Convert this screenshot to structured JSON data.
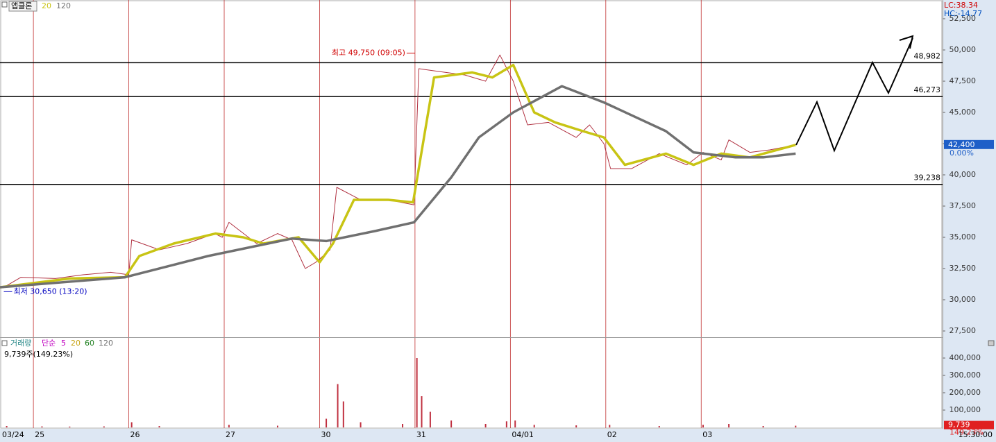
{
  "chart_data": [
    {
      "type": "line",
      "title": "앱클론",
      "lc": "LC:38.34",
      "hc": "HC:-14.77",
      "xlim": [
        -0.35,
        9.53
      ],
      "ylim": [
        27056,
        54000
      ],
      "xticks": [
        {
          "value": -0.35,
          "label": "03/24"
        },
        {
          "value": 0,
          "label": "25"
        },
        {
          "value": 1,
          "label": "26"
        },
        {
          "value": 2,
          "label": "27"
        },
        {
          "value": 3,
          "label": "30"
        },
        {
          "value": 4,
          "label": "31"
        },
        {
          "value": 5,
          "label": "04/01"
        },
        {
          "value": 6,
          "label": "02"
        },
        {
          "value": 7,
          "label": "03"
        }
      ],
      "yticks": [
        {
          "value": 27500,
          "label": "27,500"
        },
        {
          "value": 30000,
          "label": "30,000"
        },
        {
          "value": 32500,
          "label": "32,500"
        },
        {
          "value": 35000,
          "label": "35,000"
        },
        {
          "value": 37500,
          "label": "37,500"
        },
        {
          "value": 40000,
          "label": "40,000"
        },
        {
          "value": 42500,
          "label": "42,500"
        },
        {
          "value": 45000,
          "label": "45,000"
        },
        {
          "value": 47500,
          "label": "47,500"
        },
        {
          "value": 50000,
          "label": "50,000"
        },
        {
          "value": 52500,
          "label": "52,500"
        }
      ],
      "hlines": [
        {
          "value": 48982,
          "label": "48,982"
        },
        {
          "value": 46273,
          "label": "46,273"
        },
        {
          "value": 39238,
          "label": "39,238"
        }
      ],
      "last_price": {
        "value": 42400,
        "label": "42,400"
      },
      "change": "0.00%",
      "annotations": [
        {
          "text": "최고 49,750 (09:05)",
          "x": 4.0,
          "value": 49750,
          "color": "#d00000"
        },
        {
          "text": "최저 30,650 (13:20)",
          "x": -0.31,
          "value": 30650,
          "color": "#0000c0"
        }
      ],
      "series": [
        {
          "color": "#b03040",
          "x": [
            -0.31,
            -0.13,
            0.23,
            0.52,
            0.81,
            1.0,
            1.03,
            1.32,
            1.61,
            1.9,
            1.98,
            2.05,
            2.34,
            2.56,
            2.71,
            2.85,
            2.96,
            3.11,
            3.18,
            3.43,
            3.72,
            3.99,
            4.04,
            4.23,
            4.52,
            4.74,
            4.89,
            5.03,
            5.18,
            5.4,
            5.69,
            5.83,
            5.98,
            6.05,
            6.27,
            6.56,
            6.85,
            7.02,
            7.21,
            7.29,
            7.51,
            7.72,
            7.99
          ],
          "values": [
            31000,
            31800,
            31700,
            32000,
            32200,
            32000,
            34800,
            34000,
            34500,
            35300,
            35000,
            36200,
            34500,
            35300,
            34800,
            32500,
            33000,
            34000,
            39000,
            38000,
            38000,
            37600,
            48500,
            48300,
            48000,
            47500,
            49600,
            47500,
            44000,
            44200,
            43000,
            44000,
            42500,
            40500,
            40500,
            41700,
            40800,
            41800,
            41200,
            42800,
            41800,
            42000,
            42400
          ]
        },
        {
          "name": "20",
          "color": "#c8c414",
          "x": [
            -0.35,
            0.38,
            0.96,
            1.11,
            1.47,
            1.91,
            2.2,
            2.41,
            2.78,
            3.0,
            3.14,
            3.36,
            3.72,
            3.98,
            4.2,
            4.6,
            4.81,
            5.03,
            5.25,
            5.47,
            5.76,
            5.98,
            6.2,
            6.63,
            6.92,
            7.21,
            7.51,
            7.99
          ],
          "values": [
            31000,
            31700,
            31800,
            33500,
            34500,
            35300,
            35000,
            34500,
            35000,
            33000,
            34500,
            38000,
            38000,
            37800,
            47800,
            48200,
            47800,
            48800,
            45000,
            44200,
            43500,
            43000,
            40800,
            41700,
            40800,
            41700,
            41400,
            42400
          ]
        },
        {
          "name": "120",
          "color": "#707070",
          "x": [
            -0.35,
            0.96,
            1.83,
            2.71,
            3.07,
            3.58,
            3.99,
            4.38,
            4.67,
            5.03,
            5.54,
            5.98,
            6.63,
            6.92,
            7.36,
            7.65,
            7.99
          ],
          "values": [
            31000,
            31800,
            33500,
            34900,
            34700,
            35500,
            36200,
            39800,
            43000,
            45000,
            47100,
            45800,
            43500,
            41800,
            41400,
            41400,
            41700
          ]
        }
      ]
    },
    {
      "type": "bar",
      "title": "거래량",
      "ma_label": "단순",
      "ma_periods": [
        5,
        20,
        60,
        120
      ],
      "summary": "9,739주(149.23%)",
      "time": "15:30:00",
      "last_value": {
        "value": 9739,
        "label": "9,739"
      },
      "last_change": "149.23%",
      "color": "#c03040",
      "xlim": [
        -0.35,
        9.53
      ],
      "ylim": [
        0,
        516000
      ],
      "yticks": [
        {
          "value": 100000,
          "label": "100,000"
        },
        {
          "value": 200000,
          "label": "200,000"
        },
        {
          "value": 300000,
          "label": "300,000"
        },
        {
          "value": 400000,
          "label": "400,000"
        }
      ],
      "x": [
        -0.28,
        0.09,
        0.38,
        0.74,
        1.03,
        1.32,
        2.05,
        2.56,
        3.07,
        3.19,
        3.25,
        3.43,
        3.87,
        4.02,
        4.07,
        4.16,
        4.38,
        4.74,
        4.96,
        5.05,
        5.25,
        5.69,
        6.04,
        6.56,
        7.02,
        7.29,
        7.65,
        7.99
      ],
      "values": [
        8000,
        6000,
        5000,
        6000,
        30000,
        8000,
        15000,
        10000,
        50000,
        250000,
        150000,
        30000,
        20000,
        400000,
        180000,
        90000,
        40000,
        20000,
        35000,
        40000,
        15000,
        12000,
        15000,
        8000,
        15000,
        20000,
        8000,
        9739
      ]
    }
  ]
}
